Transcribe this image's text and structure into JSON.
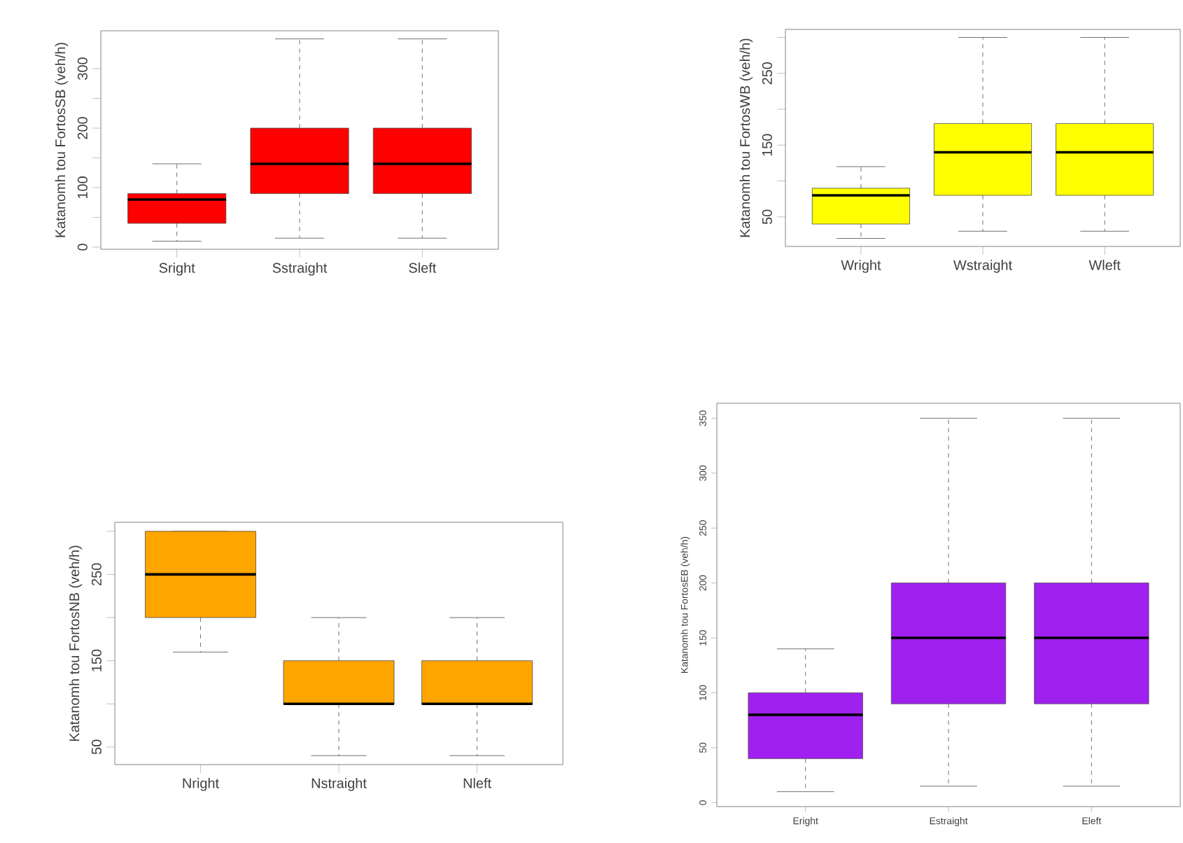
{
  "chart_data": [
    {
      "type": "box",
      "ylabel": "Katanomh tou FortosSB (veh/h)",
      "categories": [
        "Sright",
        "Sstraight",
        "Sleft"
      ],
      "color": "#ff0000",
      "ylim": [
        -3.6,
        363.6
      ],
      "yticks": [
        0,
        {
          "value": 50,
          "label": null
        },
        100,
        {
          "value": 150,
          "label": null
        },
        200,
        {
          "value": 250,
          "label": null
        },
        300
      ],
      "boxes": [
        {
          "low": 10,
          "q1": 40,
          "median": 80,
          "q3": 90,
          "high": 140
        },
        {
          "low": 15,
          "q1": 90,
          "median": 140,
          "q3": 200,
          "high": 350
        },
        {
          "low": 15,
          "q1": 90,
          "median": 140,
          "q3": 200,
          "high": 350
        }
      ]
    },
    {
      "type": "box",
      "ylabel": "Katanomh tou FortosWB (veh/h)",
      "categories": [
        "Wright",
        "Wstraight",
        "Wleft"
      ],
      "color": "#ffff00",
      "ylim": [
        8.8,
        311.2
      ],
      "yticks": [
        50,
        {
          "value": 100,
          "label": null
        },
        150,
        {
          "value": 200,
          "label": null
        },
        250,
        {
          "value": 300,
          "label": null
        }
      ],
      "boxes": [
        {
          "low": 20,
          "q1": 40,
          "median": 80,
          "q3": 90,
          "high": 120
        },
        {
          "low": 30,
          "q1": 80,
          "median": 140,
          "q3": 180,
          "high": 300
        },
        {
          "low": 30,
          "q1": 80,
          "median": 140,
          "q3": 180,
          "high": 300
        }
      ]
    },
    {
      "type": "box",
      "ylabel": "Katanomh tou FortosNB (veh/h)",
      "categories": [
        "Nright",
        "Nstraight",
        "Nleft"
      ],
      "color": "#ffa500",
      "ylim": [
        29.6,
        310.4
      ],
      "yticks": [
        50,
        {
          "value": 100,
          "label": null
        },
        150,
        {
          "value": 200,
          "label": null
        },
        250,
        {
          "value": 300,
          "label": null
        }
      ],
      "boxes": [
        {
          "low": 160,
          "q1": 200,
          "median": 250,
          "q3": 300,
          "high": 300
        },
        {
          "low": 40,
          "q1": 100,
          "median": 100,
          "q3": 150,
          "high": 200
        },
        {
          "low": 40,
          "q1": 100,
          "median": 100,
          "q3": 150,
          "high": 200
        }
      ]
    },
    {
      "type": "box",
      "ylabel": "Katanomh tou FortosEB (veh/h)",
      "categories": [
        "Eright",
        "Estraight",
        "Eleft"
      ],
      "color": "#a020f0",
      "ylim": [
        -3.6,
        363.6
      ],
      "yticks": [
        0,
        50,
        100,
        150,
        200,
        250,
        300,
        350
      ],
      "boxes": [
        {
          "low": 10,
          "q1": 40,
          "median": 80,
          "q3": 100,
          "high": 140
        },
        {
          "low": 15,
          "q1": 90,
          "median": 150,
          "q3": 200,
          "high": 350
        },
        {
          "low": 15,
          "q1": 90,
          "median": 150,
          "q3": 200,
          "high": 350
        }
      ]
    }
  ]
}
